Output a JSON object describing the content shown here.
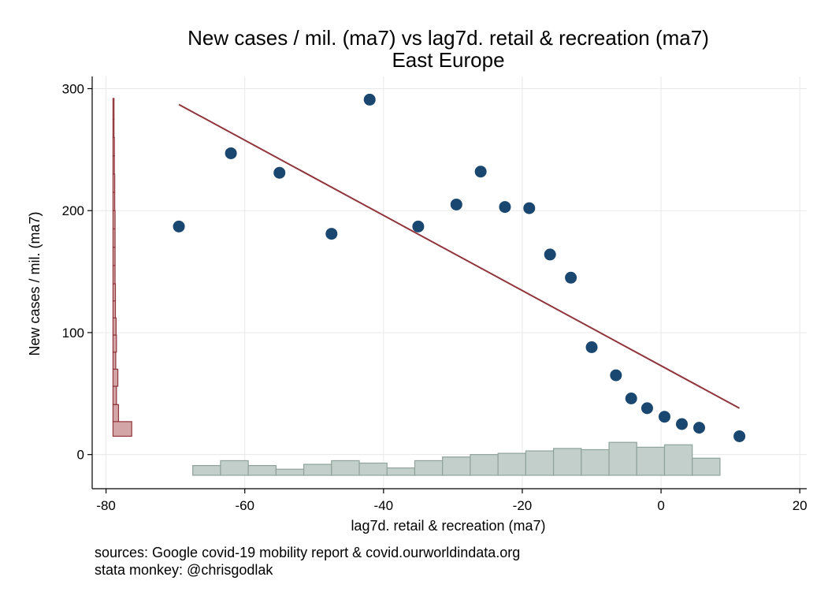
{
  "chart_data": {
    "type": "scatter",
    "title": "New cases / mil. (ma7) vs lag7d. retail & recreation (ma7)",
    "subtitle": "East Europe",
    "xlabel": "lag7d. retail & recreation (ma7)",
    "ylabel": "New cases / mil. (ma7)",
    "xlim": [
      -82,
      21
    ],
    "ylim": [
      -28,
      310
    ],
    "x_ticks": [
      -80,
      -60,
      -40,
      -20,
      0,
      20
    ],
    "y_ticks": [
      0,
      100,
      200,
      300
    ],
    "grid": true,
    "colors": {
      "points": "#1a476f",
      "fit_line": "#90353b",
      "y_histogram_fill": "#d4a5a7",
      "y_histogram_stroke": "#90353b",
      "x_histogram_fill": "#c3cfca",
      "x_histogram_stroke": "#8fa39b",
      "grid": "#e8e8e8"
    },
    "points": [
      {
        "x": -69.5,
        "y": 187
      },
      {
        "x": -62,
        "y": 247
      },
      {
        "x": -55,
        "y": 231
      },
      {
        "x": -47.5,
        "y": 181
      },
      {
        "x": -42,
        "y": 291
      },
      {
        "x": -35,
        "y": 187
      },
      {
        "x": -29.5,
        "y": 205
      },
      {
        "x": -26,
        "y": 232
      },
      {
        "x": -22.5,
        "y": 203
      },
      {
        "x": -19,
        "y": 202
      },
      {
        "x": -16,
        "y": 164
      },
      {
        "x": -13,
        "y": 145
      },
      {
        "x": -10,
        "y": 88
      },
      {
        "x": -6.5,
        "y": 65
      },
      {
        "x": -4.3,
        "y": 46
      },
      {
        "x": -2,
        "y": 38
      },
      {
        "x": 0.5,
        "y": 31
      },
      {
        "x": 3,
        "y": 25
      },
      {
        "x": 5.5,
        "y": 22
      },
      {
        "x": 11.3,
        "y": 15
      }
    ],
    "fit_line": {
      "x": [
        -69.5,
        11.3
      ],
      "y": [
        287,
        38
      ]
    },
    "x_histogram": {
      "base_y": -17,
      "bins": [
        {
          "x0": -67.5,
          "x1": -63.5,
          "h": 8
        },
        {
          "x0": -63.5,
          "x1": -59.5,
          "h": 12
        },
        {
          "x0": -59.5,
          "x1": -55.5,
          "h": 8
        },
        {
          "x0": -55.5,
          "x1": -51.5,
          "h": 5
        },
        {
          "x0": -51.5,
          "x1": -47.5,
          "h": 9
        },
        {
          "x0": -47.5,
          "x1": -43.5,
          "h": 12
        },
        {
          "x0": -43.5,
          "x1": -39.5,
          "h": 10
        },
        {
          "x0": -39.5,
          "x1": -35.5,
          "h": 6
        },
        {
          "x0": -35.5,
          "x1": -31.5,
          "h": 12
        },
        {
          "x0": -31.5,
          "x1": -27.5,
          "h": 15
        },
        {
          "x0": -27.5,
          "x1": -23.5,
          "h": 17
        },
        {
          "x0": -23.5,
          "x1": -19.5,
          "h": 18
        },
        {
          "x0": -19.5,
          "x1": -15.5,
          "h": 20
        },
        {
          "x0": -15.5,
          "x1": -11.5,
          "h": 22
        },
        {
          "x0": -11.5,
          "x1": -7.5,
          "h": 21
        },
        {
          "x0": -7.5,
          "x1": -3.5,
          "h": 27
        },
        {
          "x0": -3.5,
          "x1": 0.5,
          "h": 23
        },
        {
          "x0": 0.5,
          "x1": 4.5,
          "h": 25
        },
        {
          "x0": 4.5,
          "x1": 8.5,
          "h": 14
        }
      ]
    },
    "y_histogram": {
      "base_x": -79,
      "bins": [
        {
          "y0": 15,
          "y1": 27,
          "w": 2.7
        },
        {
          "y0": 27,
          "y1": 41,
          "w": 0.8
        },
        {
          "y0": 41,
          "y1": 56,
          "w": 0.5
        },
        {
          "y0": 56,
          "y1": 70,
          "w": 0.7
        },
        {
          "y0": 70,
          "y1": 84,
          "w": 0.4
        },
        {
          "y0": 84,
          "y1": 98,
          "w": 0.5
        },
        {
          "y0": 98,
          "y1": 112,
          "w": 0.45
        },
        {
          "y0": 112,
          "y1": 126,
          "w": 0.35
        },
        {
          "y0": 126,
          "y1": 140,
          "w": 0.35
        },
        {
          "y0": 140,
          "y1": 155,
          "w": 0.3
        },
        {
          "y0": 155,
          "y1": 170,
          "w": 0.3
        },
        {
          "y0": 170,
          "y1": 185,
          "w": 0.3
        },
        {
          "y0": 185,
          "y1": 200,
          "w": 0.3
        },
        {
          "y0": 200,
          "y1": 215,
          "w": 0.25
        },
        {
          "y0": 215,
          "y1": 230,
          "w": 0.25
        },
        {
          "y0": 230,
          "y1": 245,
          "w": 0.2
        },
        {
          "y0": 245,
          "y1": 260,
          "w": 0.2
        },
        {
          "y0": 260,
          "y1": 275,
          "w": 0.15
        },
        {
          "y0": 275,
          "y1": 292,
          "w": 0.15
        }
      ]
    }
  },
  "notes": {
    "line1": "sources: Google covid-19 mobility report & covid.ourworldindata.org",
    "line2": "stata monkey: @chrisgodlak"
  }
}
